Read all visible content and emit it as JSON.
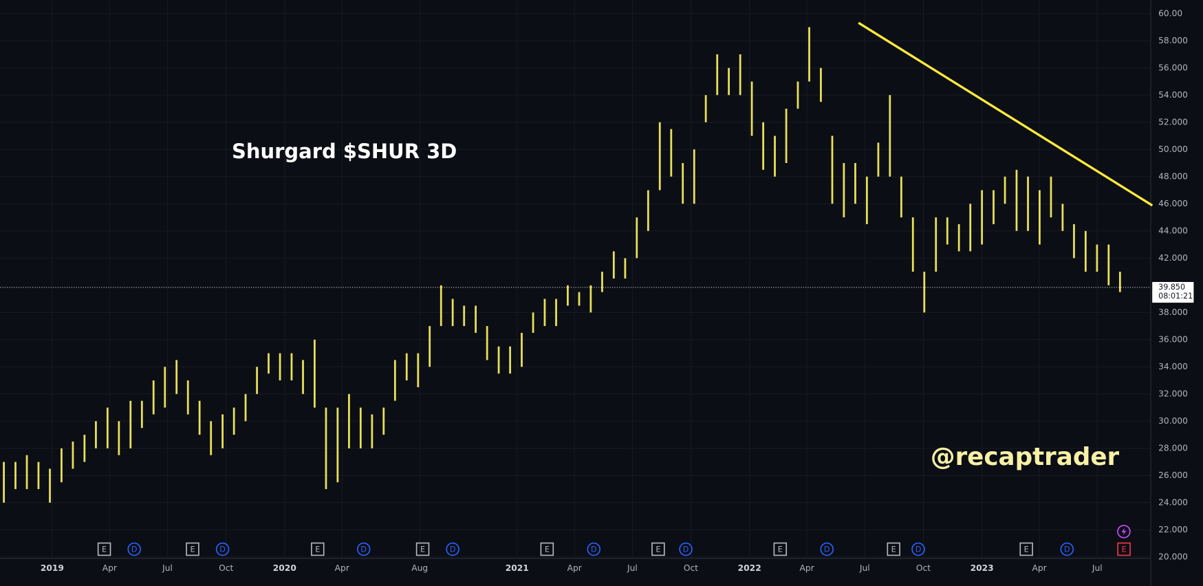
{
  "chart_data": {
    "type": "hilo",
    "title": "Shurgard $SHUR 3D",
    "watermark": "@recaptrader",
    "color": "#e8e05a",
    "x": [
      2018.792,
      2018.842,
      2018.891,
      2018.941,
      2018.99,
      2019.04,
      2019.089,
      2019.139,
      2019.188,
      2019.238,
      2019.287,
      2019.337,
      2019.386,
      2019.436,
      2019.485,
      2019.535,
      2019.584,
      2019.634,
      2019.683,
      2019.733,
      2019.782,
      2019.832,
      2019.881,
      2019.931,
      2019.98,
      2020.03,
      2020.079,
      2020.129,
      2020.178,
      2020.228,
      2020.277,
      2020.327,
      2020.376,
      2020.426,
      2020.475,
      2020.525,
      2020.574,
      2020.624,
      2020.673,
      2020.723,
      2020.772,
      2020.822,
      2020.871,
      2020.921,
      2020.97,
      2021.02,
      2021.069,
      2021.119,
      2021.168,
      2021.218,
      2021.267,
      2021.317,
      2021.366,
      2021.416,
      2021.465,
      2021.515,
      2021.564,
      2021.614,
      2021.663,
      2021.713,
      2021.762,
      2021.812,
      2021.861,
      2021.911,
      2021.96,
      2022.01,
      2022.059,
      2022.109,
      2022.158,
      2022.208,
      2022.257,
      2022.307,
      2022.356,
      2022.406,
      2022.455,
      2022.505,
      2022.554,
      2022.604,
      2022.653,
      2022.703,
      2022.752,
      2022.802,
      2022.851,
      2022.901,
      2022.95,
      2023.0,
      2023.05,
      2023.099,
      2023.149,
      2023.198,
      2023.248,
      2023.297,
      2023.347,
      2023.396,
      2023.446,
      2023.495,
      2023.545,
      2023.594
    ],
    "high": [
      27,
      27,
      27.5,
      27,
      26.5,
      28,
      28.5,
      29,
      30,
      31,
      30,
      31.5,
      31.5,
      33,
      34,
      34.5,
      33,
      31.5,
      30,
      30.5,
      31,
      32,
      34,
      35,
      35,
      35,
      34.5,
      36,
      31,
      31,
      32,
      31,
      30.5,
      31,
      34.5,
      35,
      35,
      37,
      40,
      39,
      38.5,
      38.5,
      37,
      35.5,
      35.5,
      36.5,
      38,
      39,
      39,
      40,
      39.5,
      40,
      41,
      42.5,
      42,
      45,
      47,
      52,
      51.5,
      49,
      50,
      54,
      57,
      56,
      57,
      55,
      52,
      51,
      53,
      55,
      59,
      56,
      51,
      49,
      49,
      48,
      50.5,
      54,
      48,
      45,
      41,
      45,
      45,
      44.5,
      46,
      47,
      47,
      48,
      48.5,
      48,
      47,
      48,
      46,
      44.5,
      44,
      43,
      43,
      41
    ],
    "low": [
      24,
      25,
      25,
      25,
      24,
      25.5,
      26.5,
      27,
      28,
      28,
      27.5,
      28,
      29.5,
      30.5,
      31,
      32,
      30.5,
      29,
      27.5,
      28,
      29,
      30,
      32,
      33.5,
      33,
      33,
      32,
      31,
      25,
      25.5,
      28,
      28,
      28,
      29,
      31.5,
      33,
      32.5,
      34,
      37,
      37,
      37,
      36.5,
      34.5,
      33.5,
      33.5,
      34,
      36.5,
      37,
      37,
      38.5,
      38.5,
      38,
      39.5,
      40.5,
      40.5,
      42,
      44,
      47,
      48,
      46,
      46,
      52,
      54,
      54,
      54,
      51,
      48.5,
      48,
      49,
      53,
      55,
      53.5,
      46,
      45,
      46,
      44.5,
      48,
      48,
      45,
      41,
      38,
      41,
      43,
      42.5,
      42.5,
      43,
      44.5,
      46,
      44,
      44,
      43,
      45,
      44,
      42,
      41,
      41,
      40,
      39.5
    ],
    "xlim": [
      2018.776,
      2023.726
    ],
    "xticks": [
      2019,
      {
        "value": 2019.247,
        "label": "Apr"
      },
      {
        "value": 2019.496,
        "label": "Jul"
      },
      {
        "value": 2019.748,
        "label": "Oct"
      },
      2020,
      {
        "value": 2020.247,
        "label": "Apr"
      },
      {
        "value": 2020.581,
        "label": "Aug"
      },
      2021,
      {
        "value": 2021.247,
        "label": "Apr"
      },
      {
        "value": 2021.496,
        "label": "Jul"
      },
      {
        "value": 2021.748,
        "label": "Oct"
      },
      2022,
      {
        "value": 2022.247,
        "label": "Apr"
      },
      {
        "value": 2022.496,
        "label": "Jul"
      },
      {
        "value": 2022.748,
        "label": "Oct"
      },
      2023,
      {
        "value": 2023.247,
        "label": "Apr"
      },
      {
        "value": 2023.496,
        "label": "Jul"
      }
    ],
    "ylim": [
      19.9,
      61.0
    ],
    "yticks": [
      {
        "value": 20,
        "label": "20.000"
      },
      {
        "value": 22,
        "label": "22.000"
      },
      {
        "value": 24,
        "label": "24.000"
      },
      {
        "value": 26,
        "label": "26.000"
      },
      {
        "value": 28,
        "label": "28.000"
      },
      {
        "value": 30,
        "label": "30.000"
      },
      {
        "value": 32,
        "label": "32.000"
      },
      {
        "value": 34,
        "label": "34.000"
      },
      {
        "value": 36,
        "label": "36.000"
      },
      {
        "value": 38,
        "label": "38.000"
      },
      {
        "value": 42,
        "label": "42.000"
      },
      {
        "value": 44,
        "label": "44.000"
      },
      {
        "value": 46,
        "label": "46.000"
      },
      {
        "value": 48,
        "label": "48.000"
      },
      {
        "value": 50,
        "label": "50.000"
      },
      {
        "value": 52,
        "label": "52.000"
      },
      {
        "value": 54,
        "label": "54.000"
      },
      {
        "value": 56,
        "label": "56.000"
      },
      {
        "value": 58,
        "label": "58.000"
      },
      {
        "value": 60,
        "label": "60.00"
      }
    ],
    "grid": true,
    "last_price": {
      "value": 39.85,
      "label": "39.850",
      "countdown": "08:01:21"
    },
    "trendline": {
      "x": [
        2022.469,
        2023.733
      ],
      "y": [
        59.32,
        45.88
      ],
      "color": "#ffeb3b"
    },
    "events": [
      {
        "x": 2019.224,
        "label": "E",
        "color": "#b2b5be"
      },
      {
        "x": 2019.353,
        "label": "D",
        "color": "#2962ff"
      },
      {
        "x": 2019.604,
        "label": "E",
        "color": "#b2b5be"
      },
      {
        "x": 2019.733,
        "label": "D",
        "color": "#2962ff"
      },
      {
        "x": 2020.142,
        "label": "E",
        "color": "#b2b5be"
      },
      {
        "x": 2020.34,
        "label": "D",
        "color": "#2962ff"
      },
      {
        "x": 2020.594,
        "label": "E",
        "color": "#b2b5be"
      },
      {
        "x": 2020.723,
        "label": "D",
        "color": "#2962ff"
      },
      {
        "x": 2021.129,
        "label": "E",
        "color": "#b2b5be"
      },
      {
        "x": 2021.33,
        "label": "D",
        "color": "#2962ff"
      },
      {
        "x": 2021.607,
        "label": "E",
        "color": "#b2b5be"
      },
      {
        "x": 2021.726,
        "label": "D",
        "color": "#2962ff"
      },
      {
        "x": 2022.132,
        "label": "E",
        "color": "#b2b5be"
      },
      {
        "x": 2022.333,
        "label": "D",
        "color": "#2962ff"
      },
      {
        "x": 2022.62,
        "label": "E",
        "color": "#b2b5be"
      },
      {
        "x": 2022.726,
        "label": "D",
        "color": "#2962ff"
      },
      {
        "x": 2023.191,
        "label": "E",
        "color": "#b2b5be"
      },
      {
        "x": 2023.366,
        "label": "D",
        "color": "#2962ff"
      },
      {
        "x": 2023.611,
        "label": "E",
        "color": "#f23645"
      }
    ]
  }
}
